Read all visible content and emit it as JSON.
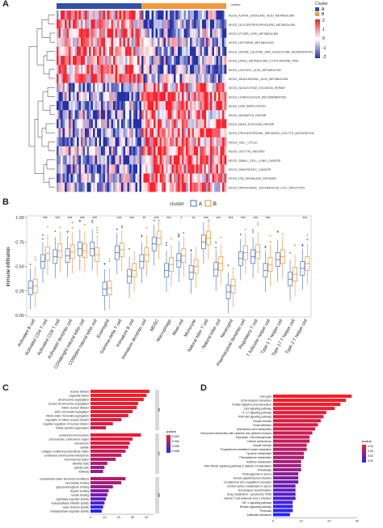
{
  "panels": {
    "a": {
      "label": "A",
      "cluster_header": "cluster",
      "legend_title": "Cluster",
      "groups": [
        "A",
        "B"
      ],
      "group_colors": {
        "A": "#2e51a7",
        "B": "#f3983b"
      },
      "scale_ticks": [
        "2",
        "1",
        "0",
        "-1",
        "-2"
      ],
      "scale_colors": {
        "high": "#e3202c",
        "mid": "#ffffff",
        "low": "#2531a8"
      },
      "rows": [
        "KEGG_ALPHA_LINOLENIC_ACID_METABOLISM",
        "KEGG_GLYCEROPHOSPHOLIPID_METABOLISM",
        "KEGG_ETHER_LIPID_METABOLISM",
        "KEGG_HISTIDINE_METABOLISM",
        "KEGG_VALINE_LEUCINE_AND_ISOLEUCINE_DEGRADATION",
        "KEGG_DRUG_METABOLISM_CYTOCHROME_P450",
        "KEGG_LINOLEIC_ACID_METABOLISM",
        "KEGG_ARACHIDONIC_ACID_METABOLISM",
        "KEGG_NUCLEOTIDE_EXCISION_REPAIR",
        "KEGG_HOMOLOGOUS_RECOMBINATION",
        "KEGG_DNA_REPLICATION",
        "KEGG_MISMATCH_REPAIR",
        "KEGG_BASE_EXCISION_REPAIR",
        "KEGG_PROGESTERONE_MEDIATED_OOCYTE_MATURATION",
        "KEGG_CELL_CYCLE",
        "KEGG_OOCYTE_MEIOSIS",
        "KEGG_SMALL_CELL_LUNG_CANCER",
        "KEGG_PANCREATIC_CANCER",
        "KEGG_P53_SIGNALING_PATHWAY",
        "KEGG_PATHOGENIC_ESCHERICHIA_COLI_INFECTION"
      ]
    },
    "b": {
      "label": "B",
      "legend_title": "cluster",
      "groups": [
        "A",
        "B"
      ],
      "group_colors": {
        "A": "#3d6fcf",
        "B": "#ef8c2e"
      },
      "ylabel": "Immune infiltration",
      "chart_data": {
        "type": "box",
        "ylim": [
          0.0,
          1.0
        ],
        "yticks": [
          "0.00",
          "0.25",
          "0.50",
          "0.75",
          "1.00"
        ],
        "categories": [
          "Activated B cell",
          "Activated CD4 T cell",
          "Activated CD8 T cell",
          "Activated dendritic cell",
          "CD56bright natural killer cell",
          "CD56dim natural killer cell",
          "Eosinophil",
          "Gamma delta T cell",
          "Immature B cell",
          "Immature dendritic cell",
          "MDSC",
          "Macrophage",
          "Mast cell",
          "Monocyte",
          "Natural killer T cell",
          "Natural killer cell",
          "Neutrophil",
          "Plasmacytoid dendritic cell",
          "Regulatory T cell",
          "T follicular helper cell",
          "Type 1 T helper cell",
          "Type 17 T helper cell",
          "Type 2 T helper cell"
        ],
        "significance": [
          "",
          "***",
          "***",
          "***",
          "***",
          "***",
          "",
          "***",
          "***",
          "**",
          "***",
          "***",
          "*",
          "**",
          "***",
          "***",
          "***",
          "***",
          "***",
          "***",
          "",
          "",
          "***"
        ],
        "series": [
          {
            "name": "A",
            "median": [
              0.28,
              0.55,
              0.6,
              0.61,
              0.68,
              0.68,
              0.27,
              0.64,
              0.4,
              0.55,
              0.73,
              0.46,
              0.56,
              0.44,
              0.75,
              0.47,
              0.24,
              0.58,
              0.6,
              0.46,
              0.57,
              0.37,
              0.48
            ]
          },
          {
            "name": "B",
            "median": [
              0.3,
              0.63,
              0.66,
              0.65,
              0.66,
              0.62,
              0.28,
              0.67,
              0.46,
              0.62,
              0.79,
              0.52,
              0.61,
              0.5,
              0.79,
              0.53,
              0.3,
              0.64,
              0.65,
              0.52,
              0.6,
              0.42,
              0.53
            ]
          }
        ]
      }
    },
    "c": {
      "label": "C",
      "legend_title": "pvalue",
      "legend_ticks": [
        "0.002",
        "0.004",
        "0.006",
        "0.008"
      ],
      "xticks": [
        "0",
        "10",
        "20",
        "30",
        "40"
      ],
      "groups": [
        "BP",
        "CC",
        "MF"
      ],
      "chart_data": {
        "type": "bar",
        "categories": [
          "nuclear division",
          "organelle fission",
          "chromosome segregation",
          "nuclear chromosome segregation",
          "mitotic nuclear division",
          "sister chromatid segregation",
          "mitotic sister chromatid segregation",
          "regulation of mitotic nuclear division",
          "negative regulation of nuclear division",
          "mitotic spindle organization",
          "condensed chromosome",
          "chromosome, centromeric region",
          "kinetochore",
          "spindle",
          "collagen-containing extracellular matrix",
          "condensed chromosome kinetochore",
          "chromosomal region",
          "lamellar body",
          "spindle pole",
          "midbody",
          "extracellular matrix structural constituent",
          "microtubule binding",
          "glycosaminoglycan binding",
          "heparin binding",
          "tubulin binding",
          "peptidase regulator activity",
          "endopeptidase inhibitor activity",
          "water channel activity",
          "endopeptidase regulator activity"
        ],
        "values": [
          42,
          40,
          38,
          34,
          33,
          30,
          27,
          22,
          16,
          11,
          36,
          30,
          28,
          27,
          25,
          22,
          18,
          12,
          10,
          9,
          25,
          22,
          16,
          13,
          12,
          11,
          10,
          9,
          8
        ],
        "group_of": [
          "BP",
          "BP",
          "BP",
          "BP",
          "BP",
          "BP",
          "BP",
          "BP",
          "BP",
          "BP",
          "CC",
          "CC",
          "CC",
          "CC",
          "CC",
          "CC",
          "CC",
          "CC",
          "CC",
          "CC",
          "MF",
          "MF",
          "MF",
          "MF",
          "MF",
          "MF",
          "MF",
          "MF",
          "MF"
        ],
        "pvalue": [
          0.0003,
          0.0004,
          0.0005,
          0.0006,
          0.0007,
          0.0009,
          0.0011,
          0.0014,
          0.0016,
          0.0018,
          0.001,
          0.0014,
          0.0016,
          0.0018,
          0.0022,
          0.0026,
          0.003,
          0.0035,
          0.004,
          0.0045,
          0.003,
          0.0035,
          0.0045,
          0.005,
          0.0058,
          0.0065,
          0.0072,
          0.008,
          0.0088
        ]
      }
    },
    "d": {
      "label": "D",
      "legend_title": "pvalue",
      "legend_ticks": [
        "0.04",
        "0.03",
        "0.02",
        "0.01"
      ],
      "xticks": [
        "0",
        "10",
        "20",
        "30"
      ],
      "chart_data": {
        "type": "bar",
        "categories": [
          "Cell cycle",
          "ECM-receptor interaction",
          "Protein digestion and absorption",
          "p53 signaling pathway",
          "IL-17 signaling pathway",
          "PI3K-Akt signaling pathway",
          "Oocyte meiosis",
          "Focal adhesion",
          "Arachidonic acid metabolism",
          "Viral protein interaction with cytokine and cytokine receptor",
          "Glycolysis / Gluconeogenesis",
          "Cellular senescence",
          "Oocyte meiosis",
          "Progesterone-mediated oocyte maturation",
          "Tyrosine metabolism",
          "Phenylalanine metabolism",
          "Histidine metabolism",
          "AGE-RAGE signaling pathway in diabetic complications",
          "Amoebiasis",
          "Proteoglycans in cancer",
          "Human papillomavirus infection",
          "Complement and coagulation cascades",
          "Central carbon metabolism in cancer",
          "Homologous recombination",
          "Drug metabolism - cytochrome P450",
          "Human T-cell leukemia virus 1 infection",
          "HIF-1 signaling pathway",
          "Relaxin signaling pathway",
          "Pertussis",
          "Antifolate resistance"
        ],
        "values": [
          28,
          26,
          24,
          22,
          19,
          18,
          17,
          16,
          15,
          14,
          13,
          13,
          12,
          12,
          11,
          11,
          10,
          10,
          10,
          9,
          9,
          9,
          8,
          8,
          8,
          8,
          7,
          7,
          7,
          6
        ],
        "pvalue": [
          0.001,
          0.002,
          0.003,
          0.004,
          0.005,
          0.006,
          0.007,
          0.008,
          0.009,
          0.01,
          0.011,
          0.012,
          0.013,
          0.014,
          0.015,
          0.016,
          0.017,
          0.018,
          0.02,
          0.022,
          0.024,
          0.026,
          0.028,
          0.03,
          0.032,
          0.034,
          0.036,
          0.038,
          0.04,
          0.042
        ]
      }
    }
  }
}
